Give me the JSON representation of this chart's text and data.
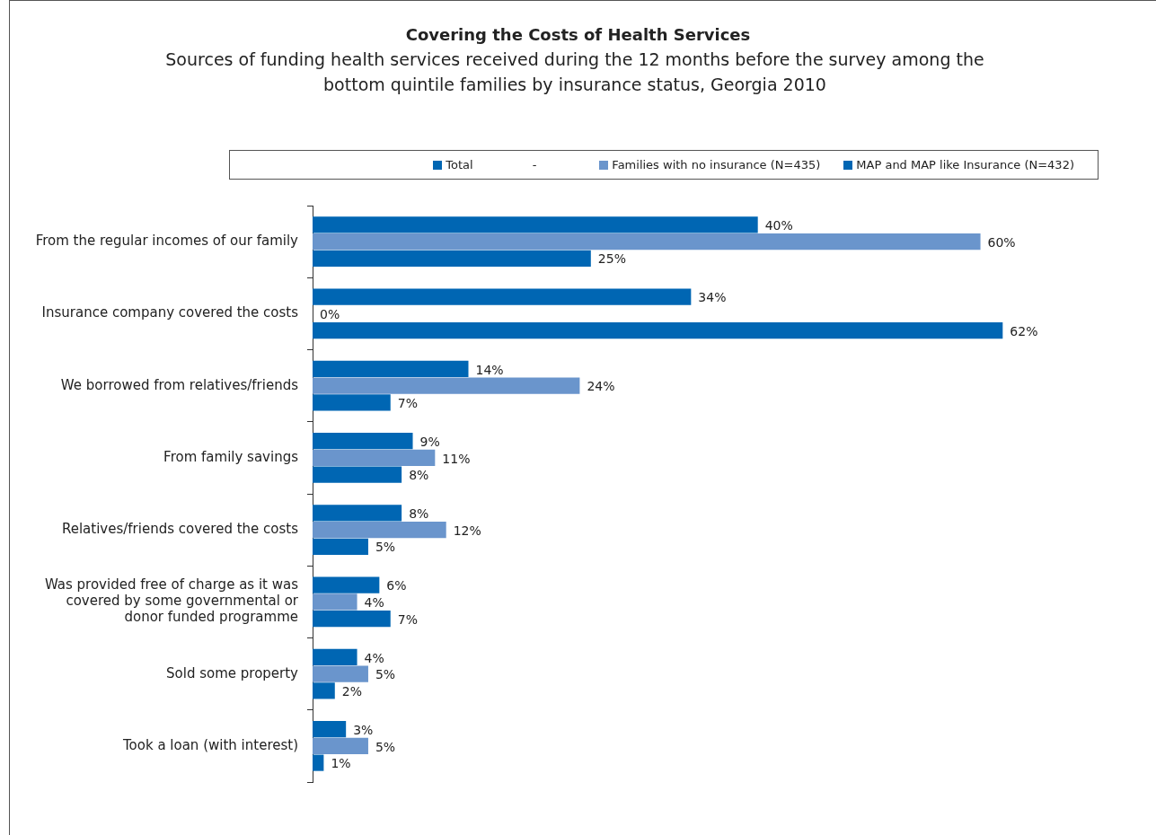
{
  "chart_data": {
    "type": "bar",
    "orientation": "horizontal",
    "title": "Covering the Costs of Health Services",
    "subtitle": "Sources of funding health services received during the 12 months before the survey among the bottom quintile families by insurance status, Georgia 2010",
    "categories": [
      "From the regular incomes of our family",
      "Insurance company covered the costs",
      "We borrowed from relatives/friends",
      "From family savings",
      "Relatives/friends covered the costs",
      "Was provided free of charge as it was covered by some governmental or donor funded programme",
      "Sold some property",
      "Took a loan (with interest)"
    ],
    "series": [
      {
        "name": "Total",
        "color": "#0066b3",
        "values": [
          40,
          34,
          14,
          9,
          8,
          6,
          4,
          3
        ],
        "value_labels": [
          "40%",
          "34%",
          "14%",
          "9%",
          "8%",
          "6%",
          "4%",
          "3%"
        ]
      },
      {
        "name": "Families with no insurance (N=435)",
        "color": "#6a95cc",
        "values": [
          60,
          0,
          24,
          11,
          12,
          4,
          5,
          5
        ],
        "value_labels": [
          "60%",
          "0%",
          "24%",
          "11%",
          "12%",
          "4%",
          "5%",
          "5%"
        ]
      },
      {
        "name": "MAP and MAP like Insurance (N=432)",
        "color": "#0066b3",
        "values": [
          25,
          62,
          7,
          8,
          5,
          7,
          2,
          1
        ],
        "value_labels": [
          "25%",
          "62%",
          "7%",
          "8%",
          "5%",
          "7%",
          "2%",
          "1%"
        ]
      }
    ],
    "annotations": [
      "-"
    ],
    "legend": "top"
  }
}
